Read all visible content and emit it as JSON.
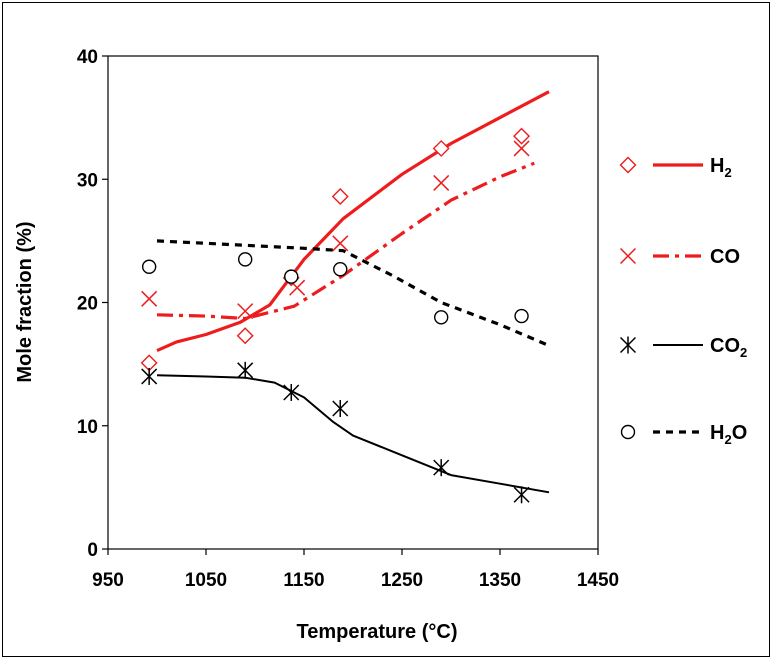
{
  "chart_data": {
    "type": "line",
    "xlabel": "Temperature (°C)",
    "ylabel": "Mole fraction (%)",
    "xlim": [
      950,
      1450
    ],
    "ylim": [
      0,
      40
    ],
    "x_ticks": [
      950,
      1050,
      1150,
      1250,
      1350,
      1450
    ],
    "y_ticks": [
      0,
      10,
      20,
      30,
      40
    ],
    "x_tick_labels": [
      "950",
      "1050",
      "1150",
      "1250",
      "1350",
      "1450"
    ],
    "y_tick_labels": [
      "0",
      "10",
      "20",
      "30",
      "40"
    ],
    "legend_position": "right",
    "series": [
      {
        "key": "h2",
        "name_main": "H",
        "name_sub": "2",
        "name_tail": "",
        "color": "#ee1c1c",
        "line_style": "solid",
        "marker": "diamond",
        "points": [
          [
            992,
            15.1
          ],
          [
            1090,
            17.3
          ],
          [
            1137,
            22.0
          ],
          [
            1187,
            28.6
          ],
          [
            1290,
            32.5
          ],
          [
            1372,
            33.5
          ]
        ],
        "model": [
          [
            1000,
            16.1
          ],
          [
            1020,
            16.8
          ],
          [
            1050,
            17.4
          ],
          [
            1085,
            18.4
          ],
          [
            1115,
            19.8
          ],
          [
            1150,
            23.5
          ],
          [
            1190,
            26.8
          ],
          [
            1250,
            30.4
          ],
          [
            1300,
            32.9
          ],
          [
            1350,
            35.0
          ],
          [
            1400,
            37.1
          ]
        ]
      },
      {
        "key": "co",
        "name_main": "CO",
        "name_sub": "",
        "name_tail": "",
        "color": "#ee1c1c",
        "line_style": "dashdot",
        "marker": "x",
        "points": [
          [
            992,
            20.3
          ],
          [
            1090,
            19.3
          ],
          [
            1143,
            21.2
          ],
          [
            1187,
            24.8
          ],
          [
            1290,
            29.7
          ],
          [
            1372,
            32.5
          ]
        ],
        "model": [
          [
            1000,
            19.0
          ],
          [
            1050,
            18.9
          ],
          [
            1090,
            18.7
          ],
          [
            1140,
            19.7
          ],
          [
            1190,
            22.2
          ],
          [
            1250,
            25.6
          ],
          [
            1300,
            28.3
          ],
          [
            1350,
            30.2
          ],
          [
            1385,
            31.3
          ]
        ]
      },
      {
        "key": "co2",
        "name_main": "CO",
        "name_sub": "2",
        "name_tail": "",
        "color": "#000000",
        "line_style": "solid",
        "marker": "asterisk",
        "points": [
          [
            992,
            14.0
          ],
          [
            1090,
            14.5
          ],
          [
            1137,
            12.7
          ],
          [
            1187,
            11.4
          ],
          [
            1290,
            6.6
          ],
          [
            1372,
            4.4
          ]
        ],
        "model": [
          [
            1000,
            14.1
          ],
          [
            1050,
            14.0
          ],
          [
            1090,
            13.9
          ],
          [
            1120,
            13.5
          ],
          [
            1150,
            12.3
          ],
          [
            1180,
            10.3
          ],
          [
            1200,
            9.2
          ],
          [
            1250,
            7.6
          ],
          [
            1300,
            6.0
          ],
          [
            1350,
            5.3
          ],
          [
            1400,
            4.6
          ]
        ]
      },
      {
        "key": "h2o",
        "name_main": "H",
        "name_sub": "2",
        "name_tail": "O",
        "color": "#000000",
        "line_style": "dashed",
        "marker": "circle",
        "points": [
          [
            992,
            22.9
          ],
          [
            1090,
            23.5
          ],
          [
            1137,
            22.1
          ],
          [
            1187,
            22.7
          ],
          [
            1290,
            18.8
          ],
          [
            1372,
            18.9
          ]
        ],
        "model": [
          [
            1000,
            25.0
          ],
          [
            1050,
            24.8
          ],
          [
            1100,
            24.6
          ],
          [
            1150,
            24.4
          ],
          [
            1190,
            24.2
          ],
          [
            1240,
            22.2
          ],
          [
            1290,
            20.0
          ],
          [
            1350,
            18.2
          ],
          [
            1400,
            16.5
          ]
        ]
      }
    ]
  }
}
